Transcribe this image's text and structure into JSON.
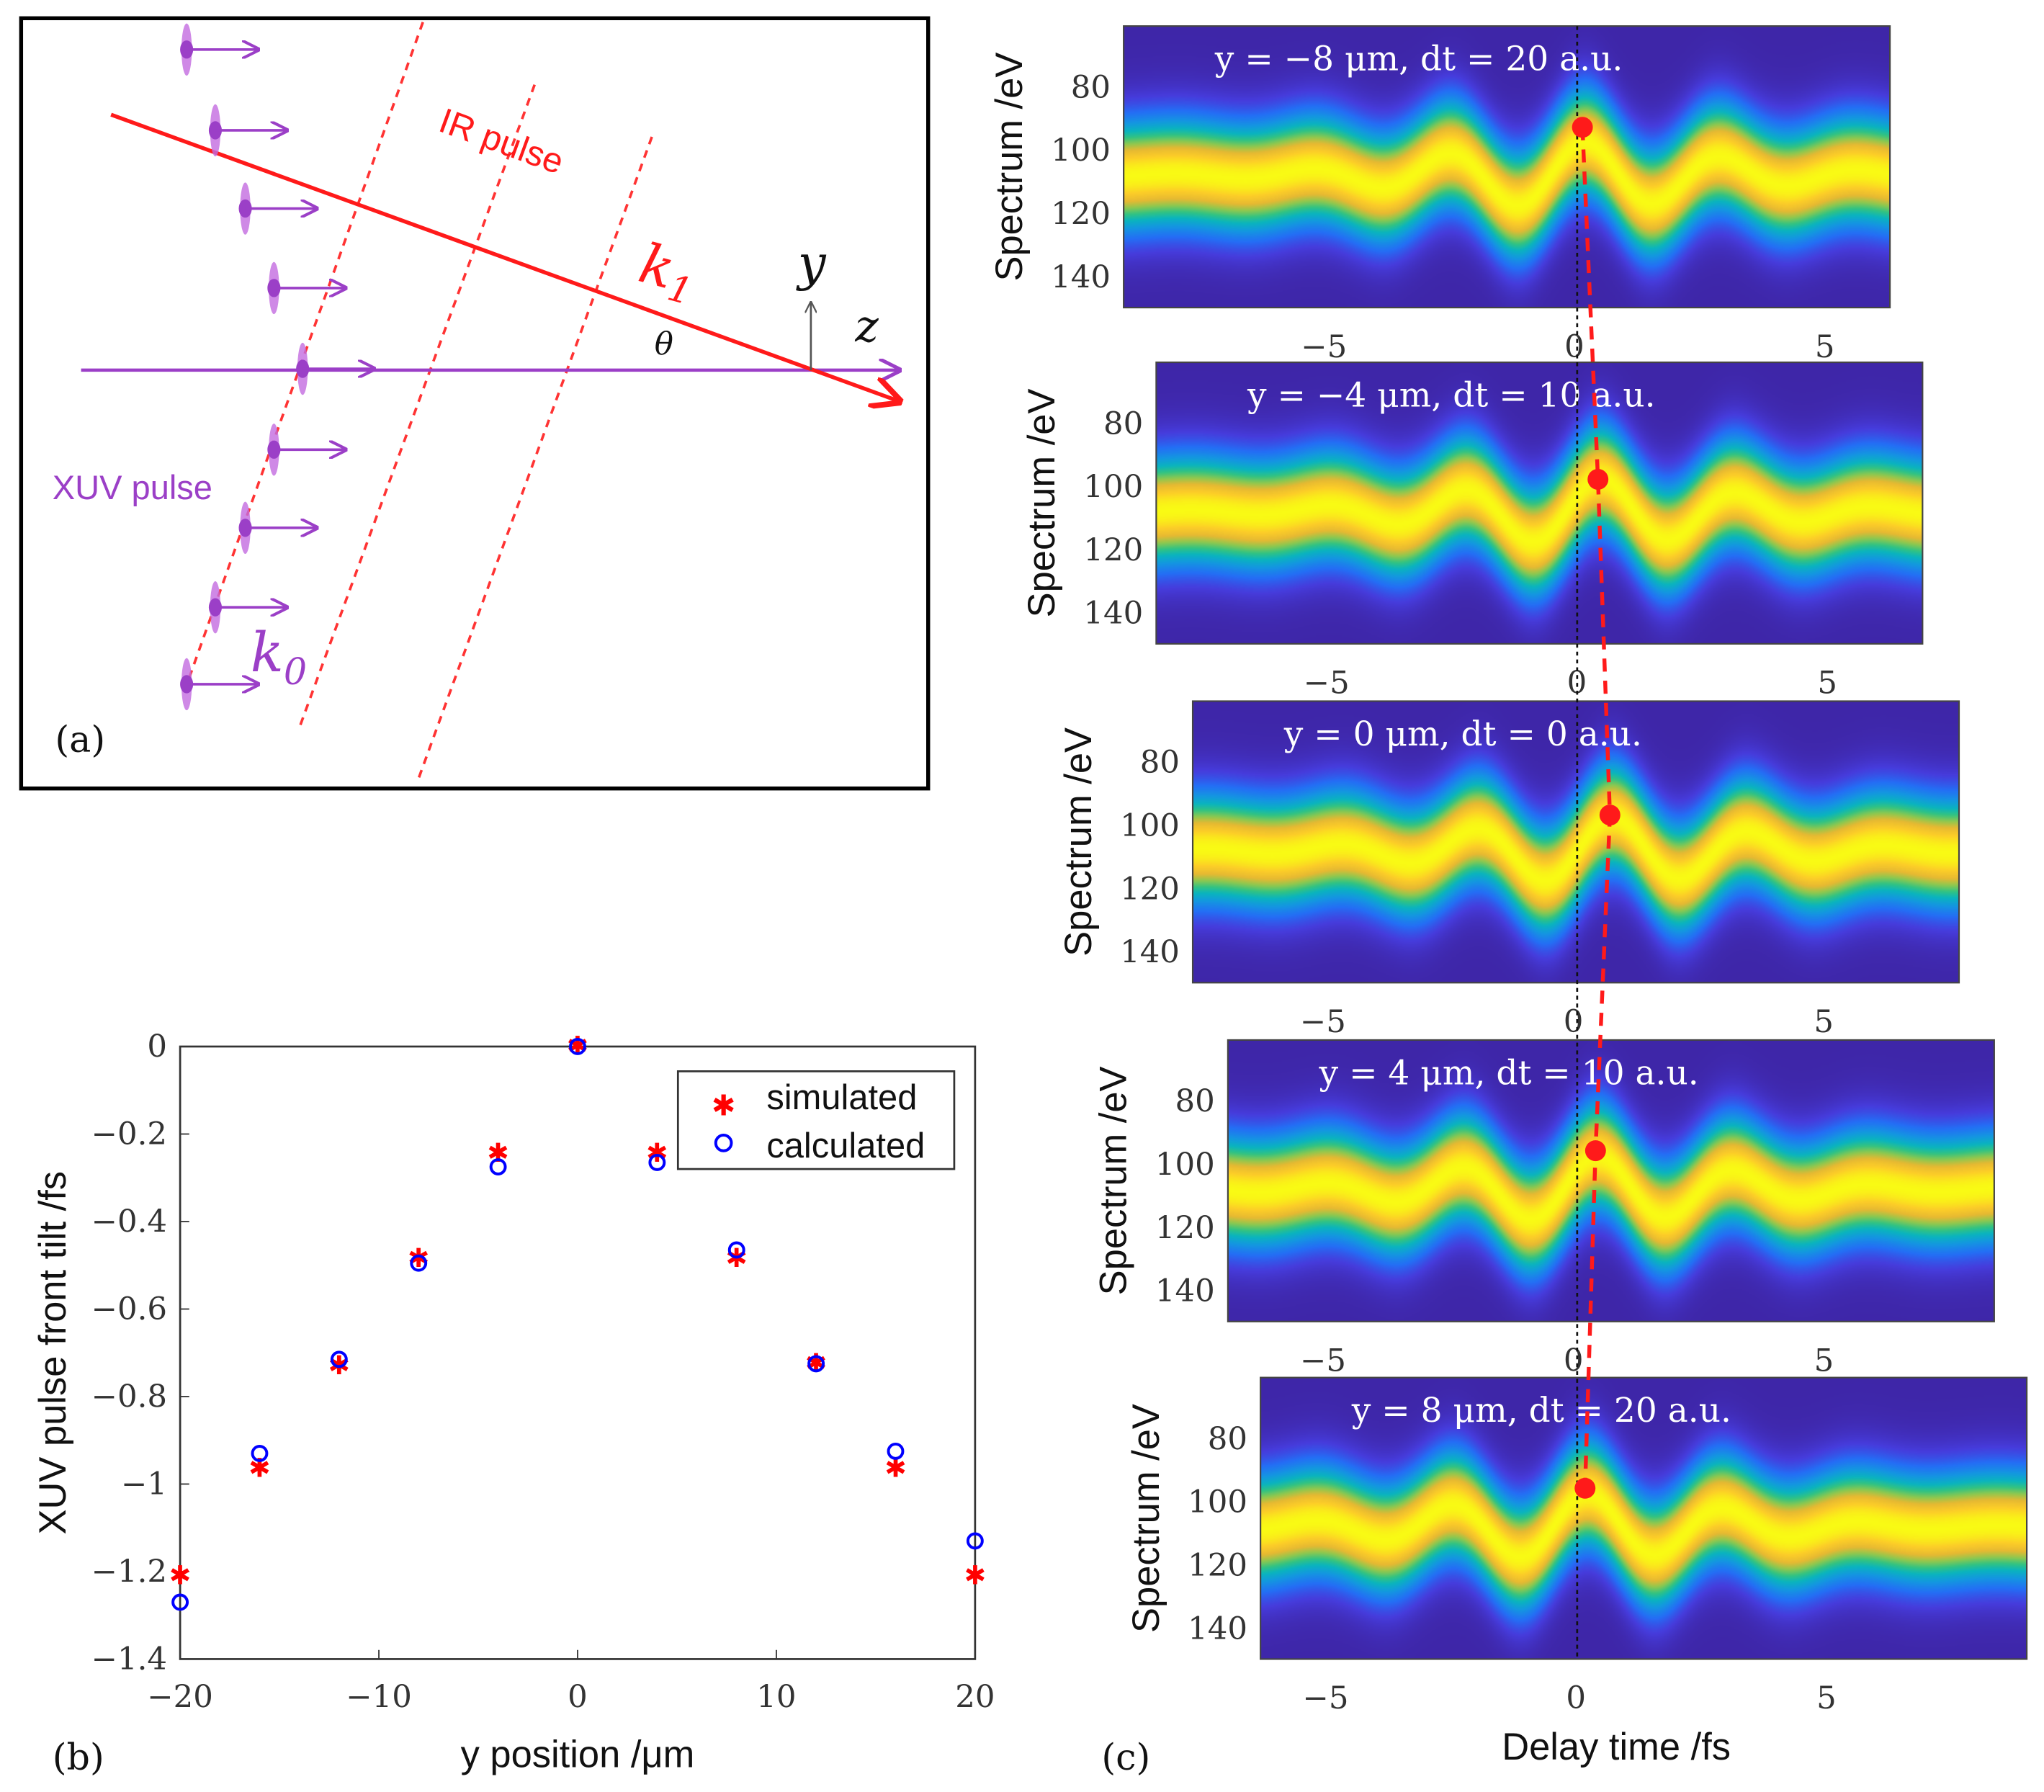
{
  "panel_a": {
    "label": "(a)",
    "ir_pulse": "IR pulse",
    "xuv_pulse": "XUV pulse",
    "k1": "k",
    "k1_sub": "1",
    "k0": "k",
    "k0_sub": "0",
    "theta": "θ",
    "axis_y": "y",
    "axis_z": "z",
    "colors": {
      "ir": "#ff1a1a",
      "xuv": "#9b3fc7"
    }
  },
  "chart_data": [
    {
      "type": "scatter",
      "panel_label": "(b)",
      "xlabel": "y position /μm",
      "ylabel": "XUV pulse front tilt /fs",
      "xlim": [
        -20,
        20
      ],
      "ylim": [
        -1.4,
        0
      ],
      "xticks": [
        -20,
        -10,
        0,
        10,
        20
      ],
      "xtick_labels": [
        "−20",
        "−10",
        "0",
        "10",
        "20"
      ],
      "yticks": [
        0,
        -0.2,
        -0.4,
        -0.6,
        -0.8,
        -1,
        -1.2,
        -1.4
      ],
      "ytick_labels": [
        "0",
        "−0.2",
        "−0.4",
        "−0.6",
        "−0.8",
        "−1",
        "−1.2",
        "−1.4"
      ],
      "legend_position": "top-right",
      "x": [
        -20,
        -16,
        -12,
        -8,
        -4,
        0,
        4,
        8,
        12,
        16,
        20
      ],
      "series": [
        {
          "name": "simulated",
          "marker": "asterisk",
          "color": "#ff0000",
          "values": [
            -1.21,
            -0.965,
            -0.73,
            -0.485,
            -0.245,
            0,
            -0.245,
            -0.485,
            -0.725,
            -0.965,
            -1.21
          ]
        },
        {
          "name": "calculated",
          "marker": "circle",
          "color": "#0000ff",
          "values": [
            -1.27,
            -0.93,
            -0.715,
            -0.495,
            -0.275,
            0,
            -0.265,
            -0.465,
            -0.725,
            -0.925,
            -1.13
          ]
        }
      ]
    },
    {
      "type": "heatmap",
      "panel_label": "(c)",
      "xlabel": "Delay time /fs",
      "ylabel": "Spectrum /eV",
      "xticks": [
        -5,
        0,
        5
      ],
      "xtick_labels": [
        "−5",
        "0",
        "5"
      ],
      "yticks": [
        80,
        100,
        120,
        140
      ],
      "ytick_labels": [
        "80",
        "100",
        "120",
        "140"
      ],
      "ylim": [
        61,
        150
      ],
      "panels": [
        {
          "title": "y = −8 μm, dt = 20 a.u.",
          "xlim": [
            -9.0,
            6.3
          ],
          "marker": {
            "t": 0.16,
            "E": 93
          }
        },
        {
          "title": "y = −4 μm, dt = 10 a.u.",
          "xlim": [
            -8.4,
            6.9
          ],
          "marker": {
            "t": 0.42,
            "E": 98
          }
        },
        {
          "title": "y = 0 μm, dt = 0 a.u.",
          "xlim": [
            -7.6,
            7.7
          ],
          "marker": {
            "t": 0.73,
            "E": 97
          }
        },
        {
          "title": "y = 4 μm, dt = 10 a.u.",
          "xlim": [
            -6.9,
            8.4
          ],
          "marker": {
            "t": 0.44,
            "E": 96
          }
        },
        {
          "title": "y = 8 μm, dt = 20 a.u.",
          "xlim": [
            -6.3,
            9.0
          ],
          "marker": {
            "t": 0.18,
            "E": 96
          }
        }
      ]
    }
  ]
}
